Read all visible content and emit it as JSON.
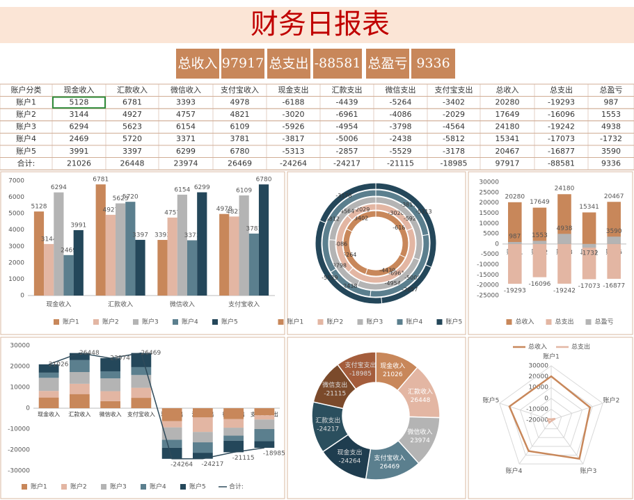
{
  "header": {
    "title": "财务日报表",
    "summary": [
      {
        "label": "总收入",
        "value": 97917
      },
      {
        "label": "总支出",
        "value": -88581
      },
      {
        "label": "总盈亏",
        "value": 9336
      }
    ]
  },
  "table": {
    "columns": [
      "账户分类",
      "现金收入",
      "汇款收入",
      "微信收入",
      "支付宝收入",
      "现金支出",
      "汇款支出",
      "微信支出",
      "支付宝支出",
      "总收入",
      "总支出",
      "总盈亏"
    ],
    "rows": [
      [
        "账户1",
        5128,
        6781,
        3393,
        4978,
        -6188,
        -4439,
        -5264,
        -3402,
        20280,
        -19293,
        987
      ],
      [
        "账户2",
        3144,
        4927,
        4757,
        4821,
        -3020,
        -6961,
        -4086,
        -2029,
        17649,
        -16096,
        1553
      ],
      [
        "账户3",
        6294,
        5623,
        6154,
        6109,
        -5926,
        -4954,
        -3798,
        -4564,
        24180,
        -19242,
        4938
      ],
      [
        "账户4",
        2469,
        5720,
        3371,
        3781,
        -3817,
        -5006,
        -2438,
        -5812,
        15341,
        -17073,
        -1732
      ],
      [
        "账户5",
        3991,
        3397,
        6299,
        6780,
        -5313,
        -2857,
        -5529,
        -3178,
        20467,
        -16877,
        3590
      ],
      [
        "合计:",
        21026,
        26448,
        23974,
        26469,
        -24264,
        -24217,
        -21115,
        -18985,
        97917,
        -88581,
        9336
      ]
    ]
  },
  "chart_data": [
    {
      "type": "bar",
      "barmode": "group",
      "categories": [
        "现金收入",
        "汇款收入",
        "微信收入",
        "支付宝收入"
      ],
      "series": [
        {
          "name": "账户1",
          "color": "#c8875a",
          "values": [
            5128,
            6781,
            3393,
            4978
          ]
        },
        {
          "name": "账户2",
          "color": "#e3b6a3",
          "values": [
            3144,
            4927,
            4757,
            4821
          ]
        },
        {
          "name": "账户3",
          "color": "#b4b4b4",
          "values": [
            6294,
            5623,
            6154,
            6109
          ]
        },
        {
          "name": "账户4",
          "color": "#5b7f8e",
          "values": [
            2469,
            5720,
            3371,
            3781
          ]
        },
        {
          "name": "账户5",
          "color": "#24475a",
          "values": [
            3991,
            3397,
            6299,
            6780
          ]
        }
      ],
      "ylim": [
        0,
        7000
      ],
      "yticks": [
        0,
        1000,
        2000,
        3000,
        4000,
        5000,
        6000,
        7000
      ],
      "legend": "bottom"
    },
    {
      "type": "doughnut",
      "categories": [
        "现金支出",
        "汇款支出",
        "微信支出",
        "支付宝支出"
      ],
      "series": [
        {
          "name": "账户1",
          "color": "#c8875a",
          "values": [
            -6188,
            -4439,
            -5264,
            -3402
          ]
        },
        {
          "name": "账户2",
          "color": "#e3b6a3",
          "values": [
            -3020,
            -6961,
            -4086,
            -2029
          ]
        },
        {
          "name": "账户3",
          "color": "#b4b4b4",
          "values": [
            -5926,
            -4954,
            -3798,
            -4564
          ]
        },
        {
          "name": "账户4",
          "color": "#5b7f8e",
          "values": [
            -3817,
            -5006,
            -2438,
            -5812
          ]
        },
        {
          "name": "账户5",
          "color": "#24475a",
          "values": [
            -5313,
            -2857,
            -5529,
            -3178
          ]
        }
      ],
      "legend": "bottom"
    },
    {
      "type": "bar",
      "barmode": "overlay",
      "categories": [
        "账户1",
        "账户2",
        "账户3",
        "账户4",
        "账户5"
      ],
      "series": [
        {
          "name": "总收入",
          "color": "#c8875a",
          "values": [
            20280,
            17649,
            24180,
            15341,
            20467
          ]
        },
        {
          "name": "总支出",
          "color": "#e3b6a3",
          "values": [
            -19293,
            -16096,
            -19242,
            -17073,
            -16877
          ]
        },
        {
          "name": "总盈亏",
          "color": "#b4b4b4",
          "values": [
            987,
            1553,
            4938,
            -1732,
            3590
          ]
        }
      ],
      "ylim": [
        -25000,
        30000
      ],
      "yticks": [
        -25000,
        -20000,
        -15000,
        -10000,
        -5000,
        0,
        5000,
        10000,
        15000,
        20000,
        25000,
        30000
      ],
      "legend": "bottom"
    },
    {
      "type": "bar",
      "barmode": "stack",
      "categories": [
        "现金收入",
        "汇款收入",
        "微信收入",
        "支付宝收入",
        "现金支出",
        "汇款支出",
        "微信支出",
        "支付宝支出"
      ],
      "series": [
        {
          "name": "账户1",
          "color": "#c8875a",
          "values": [
            5128,
            6781,
            3393,
            4978,
            -6188,
            -4439,
            -5264,
            -3402
          ]
        },
        {
          "name": "账户2",
          "color": "#e3b6a3",
          "values": [
            3144,
            4927,
            4757,
            4821,
            -3020,
            -6961,
            -4086,
            -2029
          ]
        },
        {
          "name": "账户3",
          "color": "#b4b4b4",
          "values": [
            6294,
            5623,
            6154,
            6109,
            -5926,
            -4954,
            -3798,
            -4564
          ]
        },
        {
          "name": "账户4",
          "color": "#5b7f8e",
          "values": [
            2469,
            5720,
            3371,
            3781,
            -3817,
            -5006,
            -2438,
            -5812
          ]
        },
        {
          "name": "账户5",
          "color": "#24475a",
          "values": [
            3991,
            3397,
            6299,
            6780,
            -5313,
            -2857,
            -5529,
            -3178
          ]
        },
        {
          "name": "合计:",
          "color": "#2e4a5a",
          "type": "line",
          "values": [
            21026,
            26448,
            23974,
            26469,
            -24264,
            -24217,
            -21115,
            -18985
          ]
        }
      ],
      "ylim": [
        -30000,
        30000
      ],
      "yticks": [
        -30000,
        -20000,
        -10000,
        0,
        10000,
        20000,
        30000
      ],
      "legend": "bottom"
    },
    {
      "type": "doughnut",
      "categories": [
        "现金收入",
        "汇款收入",
        "微信收入",
        "支付宝收入",
        "现金支出",
        "汇款支出",
        "微信支出",
        "支付宝支出"
      ],
      "values": [
        21026,
        26448,
        23974,
        26469,
        -24264,
        -24217,
        -21115,
        -18985
      ],
      "colors": [
        "#c8875a",
        "#e3b6a3",
        "#b4b4b4",
        "#5b7f8e",
        "#1f3d4f",
        "#2b4f5e",
        "#7b4a2b",
        "#a45d3c"
      ]
    },
    {
      "type": "radar",
      "categories": [
        "账户1",
        "账户2",
        "账户3",
        "账户4",
        "账户5"
      ],
      "series": [
        {
          "name": "总收入",
          "color": "#c8875a",
          "values": [
            20280,
            17649,
            24180,
            15341,
            20467
          ]
        },
        {
          "name": "总支出",
          "color": "#e3b6a3",
          "values": [
            -19293,
            -16096,
            -19242,
            -17073,
            -16877
          ]
        }
      ],
      "rlim": [
        -20000,
        30000
      ],
      "rticks": [
        -20000,
        -10000,
        0,
        10000,
        20000,
        30000
      ],
      "legend": "top"
    }
  ]
}
